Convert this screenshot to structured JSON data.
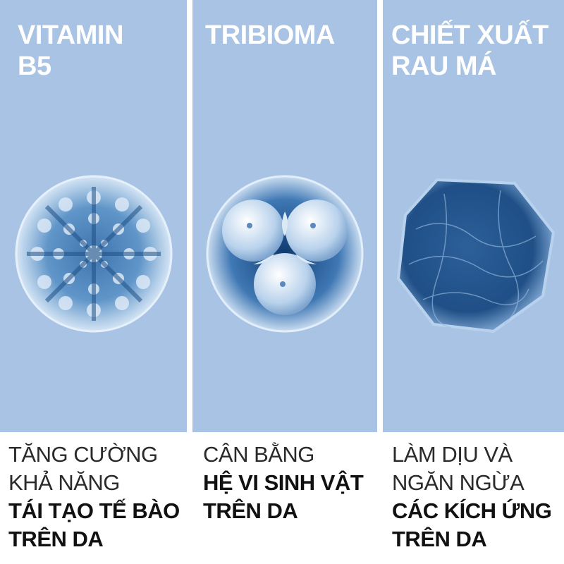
{
  "panels": [
    {
      "title": "VITAMIN\nB5",
      "caption_light": [
        "TĂNG CƯỜNG",
        "KHẢ NĂNG"
      ],
      "caption_bold": [
        "TÁI TẠO TẾ BÀO",
        "TRÊN DA"
      ]
    },
    {
      "title": "TRIBIOMA",
      "caption_light": [
        "CÂN BẰNG"
      ],
      "caption_bold": [
        "HỆ VI SINH VẬT",
        "TRÊN DA"
      ]
    },
    {
      "title": "CHIẾT XUẤT\nRAU MÁ",
      "caption_light": [
        "LÀM DỊU VÀ",
        "NGĂN NGỪA"
      ],
      "caption_bold": [
        "CÁC KÍCH ỨNG",
        "TRÊN DA"
      ]
    }
  ],
  "colors": {
    "panel_bg": "#a8c3e4",
    "heading": "#ffffff",
    "cell_dark": "#1f4f86",
    "cell_light": "#dbe9f7"
  }
}
